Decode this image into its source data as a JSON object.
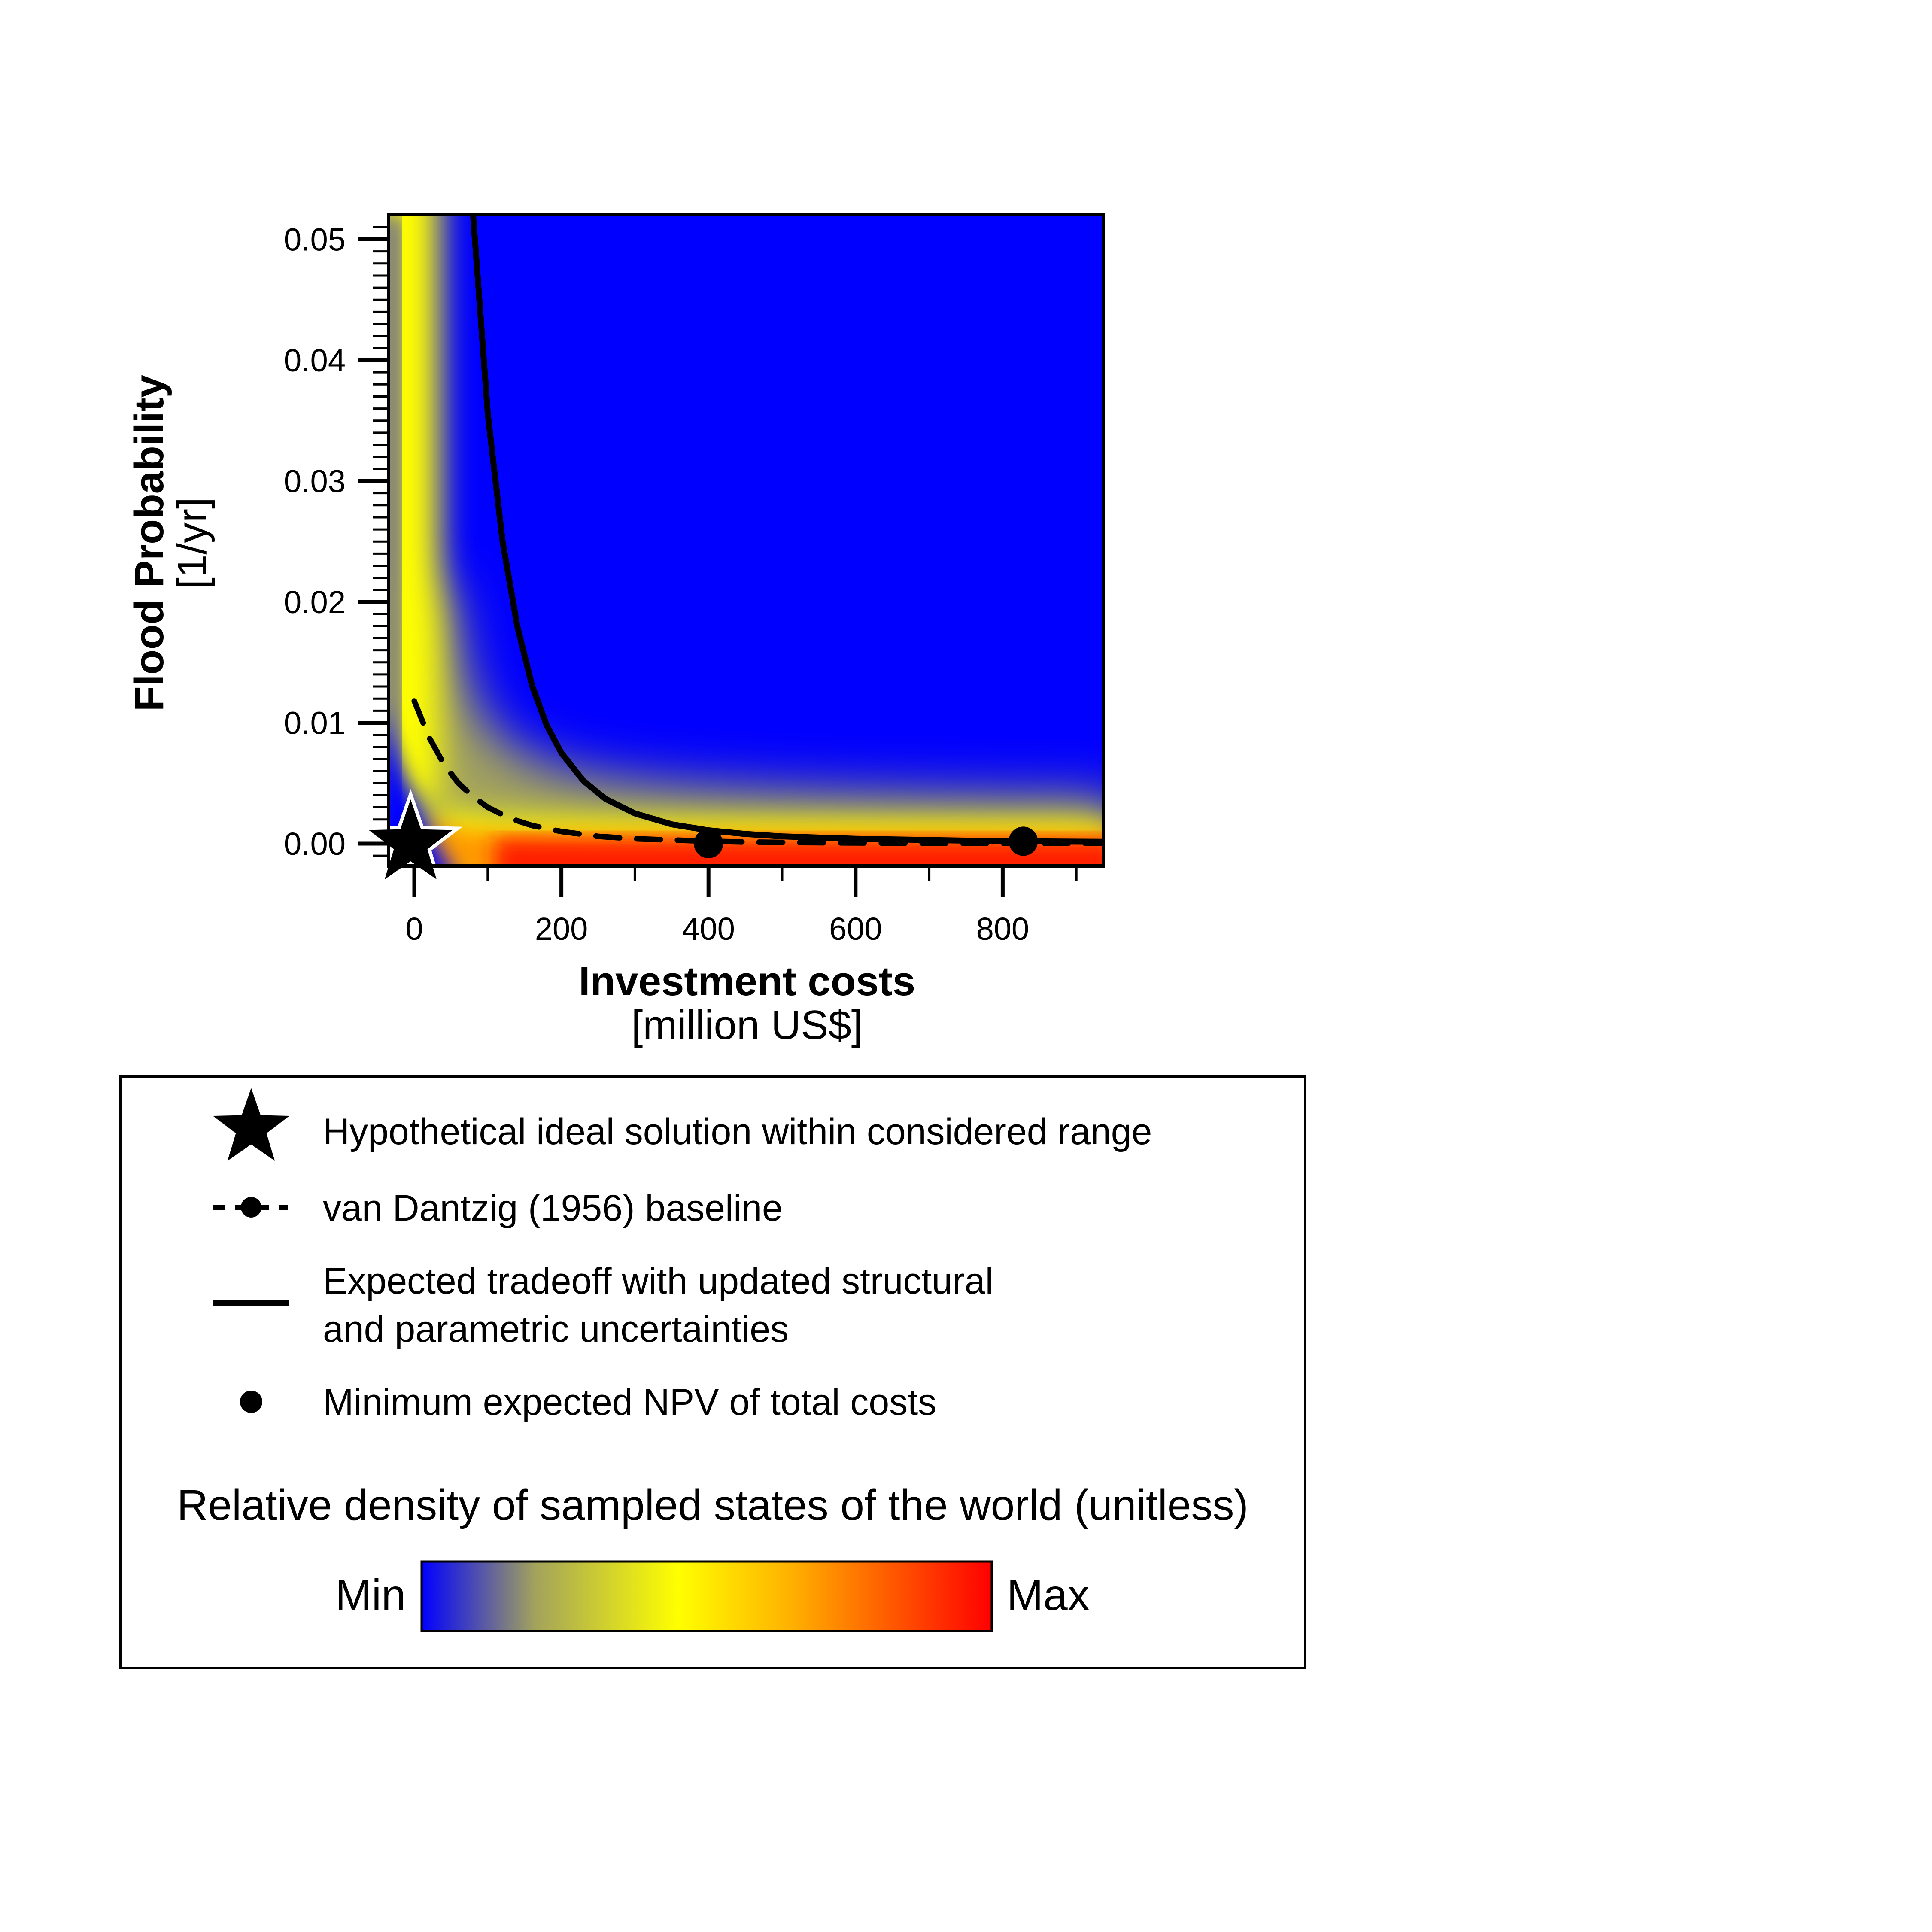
{
  "chart_data": {
    "type": "heatmap",
    "xlabel": "Investment costs",
    "xlabel_unit": "[million US$]",
    "ylabel": "Flood Probability",
    "ylabel_unit": "[1/yr]",
    "xlim": [
      -50,
      940
    ],
    "ylim": [
      -0.002,
      0.052
    ],
    "x_ticks": [
      "0",
      "200",
      "400",
      "600",
      "800"
    ],
    "x_tick_values": [
      0,
      200,
      400,
      600,
      800
    ],
    "y_ticks": [
      "0.00",
      "0.01",
      "0.02",
      "0.03",
      "0.04",
      "0.05"
    ],
    "y_tick_values": [
      0,
      0.01,
      0.02,
      0.03,
      0.04,
      0.05
    ],
    "series": [
      {
        "name": "Hypothetical ideal solution within considered range",
        "type": "marker-star",
        "x": [
          -5
        ],
        "y": [
          0.0
        ]
      },
      {
        "name": "van Dantzig (1956) baseline",
        "type": "dashed-line",
        "x": [
          0,
          20,
          40,
          60,
          80,
          100,
          130,
          160,
          200,
          250,
          300,
          350,
          400,
          450,
          500,
          600,
          700,
          800,
          940
        ],
        "y": [
          0.0118,
          0.0088,
          0.0066,
          0.005,
          0.0039,
          0.003,
          0.0021,
          0.0015,
          0.001,
          0.0006,
          0.0004,
          0.0003,
          0.0002,
          0.00013,
          0.0001,
          6e-05,
          4e-05,
          3e-05,
          2e-05
        ]
      },
      {
        "name": "Expected tradeoff with updated structural and parametric uncertainties",
        "type": "solid-line",
        "x": [
          80,
          100,
          120,
          140,
          160,
          180,
          200,
          230,
          260,
          300,
          350,
          400,
          450,
          500,
          600,
          700,
          800,
          940
        ],
        "y": [
          0.052,
          0.0355,
          0.025,
          0.018,
          0.0131,
          0.0098,
          0.0075,
          0.0052,
          0.0037,
          0.0025,
          0.0016,
          0.0011,
          0.0008,
          0.0006,
          0.0004,
          0.0003,
          0.0002,
          0.00015
        ]
      },
      {
        "name": "Minimum expected NPV of total costs",
        "type": "marker-dot",
        "x": [
          400,
          828
        ],
        "y": [
          0.0,
          0.0002
        ]
      }
    ],
    "density_ridges": [
      {
        "a": 240,
        "level": 0.0004,
        "width": 0.3
      },
      {
        "a": 80,
        "level": 0.0002,
        "width": 0.55
      },
      {
        "a": 40,
        "level": 0.0001,
        "width": 0.75
      }
    ],
    "colorbar": {
      "title": "Relative density of sampled states of the world (unitless)",
      "min_label": "Min",
      "max_label": "Max",
      "colors": [
        "#0000ff",
        "#a3a35c",
        "#ffff00",
        "#ffb000",
        "#ff0000"
      ]
    }
  },
  "legend": {
    "items": [
      {
        "label_lines": [
          "Hypothetical ideal solution within considered range"
        ]
      },
      {
        "label_lines": [
          "van Dantzig (1956) baseline"
        ]
      },
      {
        "label_lines": [
          "Expected tradeoff with updated structural",
          "and parametric uncertainties"
        ]
      },
      {
        "label_lines": [
          "Minimum expected NPV of total costs"
        ]
      }
    ]
  },
  "colors": {
    "low": "#0000ff",
    "mid_gray": "#a3a35c",
    "yellow": "#ffff00",
    "orange": "#ffb000",
    "high": "#ff0000",
    "curve": "#000000"
  }
}
